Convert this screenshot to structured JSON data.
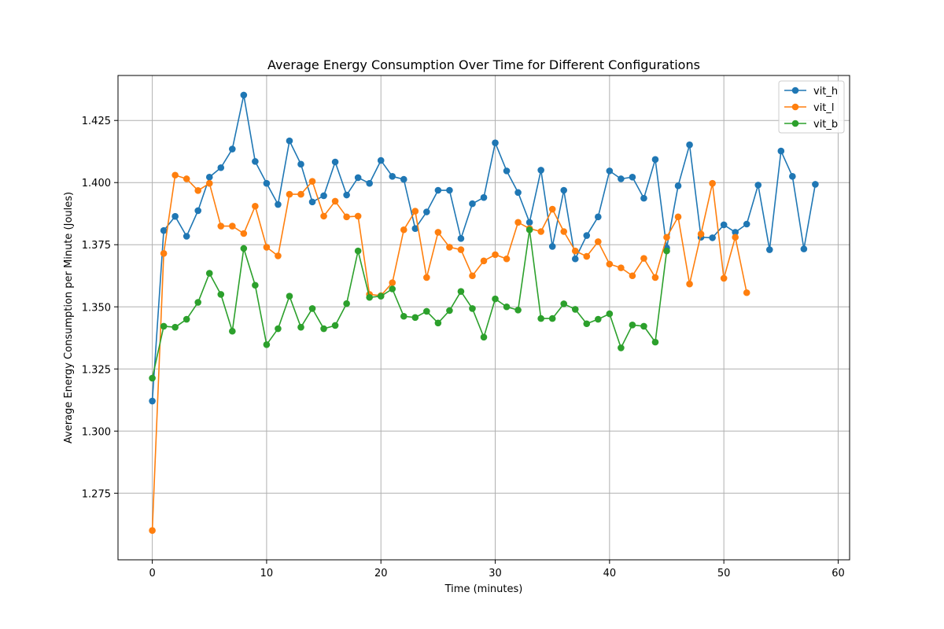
{
  "chart_data": {
    "type": "line",
    "title": "Average Energy Consumption Over Time for Different Configurations",
    "xlabel": "Time (minutes)",
    "ylabel": "Average Energy Consumption per Minute (Joules)",
    "xlim": [
      -3,
      61
    ],
    "ylim": [
      1.2482,
      1.4431
    ],
    "xticks": [
      0,
      10,
      20,
      30,
      40,
      50,
      60
    ],
    "yticks": [
      1.275,
      1.3,
      1.325,
      1.35,
      1.375,
      1.4,
      1.425
    ],
    "xtick_labels": [
      "0",
      "10",
      "20",
      "30",
      "40",
      "50",
      "60"
    ],
    "ytick_labels": [
      "1.275",
      "1.300",
      "1.325",
      "1.350",
      "1.375",
      "1.400",
      "1.425"
    ],
    "grid": true,
    "legend_position": "top-right",
    "series": [
      {
        "name": "vit_h",
        "color": "#1f77b4",
        "marker": "circle",
        "x": [
          0,
          1,
          2,
          3,
          4,
          5,
          6,
          7,
          8,
          9,
          10,
          11,
          12,
          13,
          14,
          15,
          16,
          17,
          18,
          19,
          20,
          21,
          22,
          23,
          24,
          25,
          26,
          27,
          28,
          29,
          30,
          31,
          32,
          33,
          34,
          35,
          36,
          37,
          38,
          39,
          40,
          41,
          42,
          43,
          44,
          45,
          46,
          47,
          48,
          49,
          50,
          51,
          52,
          53,
          54,
          55,
          56,
          57,
          58
        ],
        "values": [
          1.3121,
          1.3807,
          1.3864,
          1.3784,
          1.3887,
          1.4022,
          1.406,
          1.4135,
          1.4352,
          1.4085,
          1.3997,
          1.3912,
          1.4168,
          1.4074,
          1.3922,
          1.3947,
          1.4083,
          1.395,
          1.402,
          1.3997,
          1.4089,
          1.4025,
          1.4013,
          1.3815,
          1.3882,
          1.3969,
          1.3969,
          1.3775,
          1.3915,
          1.394,
          1.416,
          1.4047,
          1.396,
          1.384,
          1.405,
          1.3743,
          1.3969,
          1.3693,
          1.3787,
          1.3862,
          1.4047,
          1.4015,
          1.4022,
          1.3937,
          1.4093,
          1.3737,
          1.3987,
          1.4152,
          1.378,
          1.3778,
          1.383,
          1.38,
          1.3833,
          1.399,
          1.373,
          1.4127,
          1.4025,
          1.3733,
          1.3993
        ]
      },
      {
        "name": "vit_l",
        "color": "#ff7f0e",
        "marker": "circle",
        "x": [
          0,
          1,
          2,
          3,
          4,
          5,
          6,
          7,
          8,
          9,
          10,
          11,
          12,
          13,
          14,
          15,
          16,
          17,
          18,
          19,
          20,
          21,
          22,
          23,
          24,
          25,
          26,
          27,
          28,
          29,
          30,
          31,
          32,
          33,
          34,
          35,
          36,
          37,
          38,
          39,
          40,
          41,
          42,
          43,
          44,
          45,
          46,
          47,
          48,
          49,
          50,
          51,
          52
        ],
        "values": [
          1.26,
          1.3715,
          1.403,
          1.4015,
          1.3968,
          1.3997,
          1.3825,
          1.3825,
          1.3795,
          1.3905,
          1.374,
          1.3705,
          1.3953,
          1.3953,
          1.4005,
          1.3865,
          1.3925,
          1.3862,
          1.3865,
          1.355,
          1.3545,
          1.3597,
          1.381,
          1.3885,
          1.3618,
          1.38,
          1.374,
          1.373,
          1.3625,
          1.3685,
          1.371,
          1.3693,
          1.384,
          1.3815,
          1.3803,
          1.3893,
          1.3803,
          1.3725,
          1.3703,
          1.3762,
          1.3672,
          1.3657,
          1.3625,
          1.3695,
          1.3618,
          1.378,
          1.3862,
          1.3592,
          1.3793,
          1.3997,
          1.3615,
          1.378,
          1.3557
        ]
      },
      {
        "name": "vit_b",
        "color": "#2ca02c",
        "marker": "circle",
        "x": [
          0,
          1,
          2,
          3,
          4,
          5,
          6,
          7,
          8,
          9,
          10,
          11,
          12,
          13,
          14,
          15,
          16,
          17,
          18,
          19,
          20,
          21,
          22,
          23,
          24,
          25,
          26,
          27,
          28,
          29,
          30,
          31,
          32,
          33,
          34,
          35,
          36,
          37,
          38,
          39,
          40,
          41,
          42,
          43,
          44,
          45
        ],
        "values": [
          1.3213,
          1.3422,
          1.3418,
          1.345,
          1.3518,
          1.3635,
          1.355,
          1.3402,
          1.3735,
          1.3587,
          1.3348,
          1.3412,
          1.3543,
          1.3418,
          1.3493,
          1.3412,
          1.3425,
          1.3513,
          1.3725,
          1.3538,
          1.3543,
          1.3572,
          1.3462,
          1.3457,
          1.3482,
          1.3435,
          1.3485,
          1.3562,
          1.3493,
          1.3378,
          1.3532,
          1.35,
          1.3487,
          1.381,
          1.3453,
          1.3453,
          1.3512,
          1.349,
          1.3432,
          1.345,
          1.3472,
          1.3335,
          1.3427,
          1.3422,
          1.3358,
          1.3725
        ]
      }
    ]
  }
}
